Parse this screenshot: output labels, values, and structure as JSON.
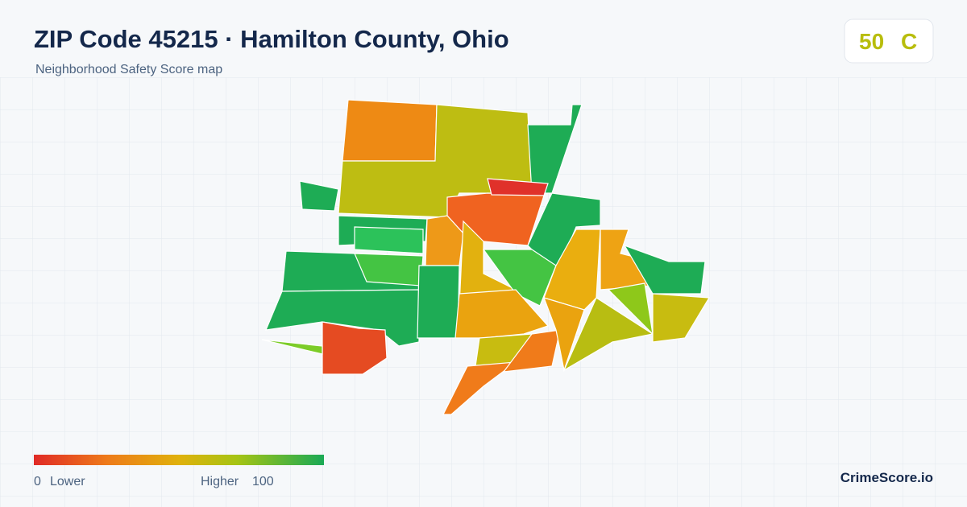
{
  "header": {
    "title": "ZIP Code 45215 · Hamilton County, Ohio",
    "subtitle": "Neighborhood Safety Score map"
  },
  "score": {
    "value": 50,
    "grade": "C"
  },
  "legend": {
    "min": 0,
    "min_label": "Lower",
    "max_label": "Higher",
    "max": 100
  },
  "footer": {
    "brand": "CrimeScore.io"
  }
}
